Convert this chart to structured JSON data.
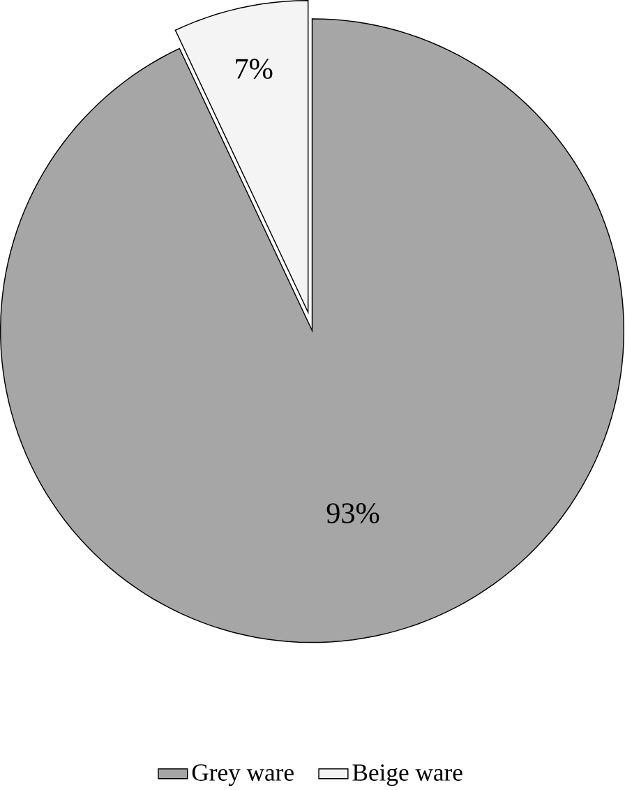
{
  "chart_data": {
    "type": "pie",
    "categories": [
      "Grey ware",
      "Beige ware"
    ],
    "values": [
      93,
      7
    ],
    "colors": [
      "#a6a6a6",
      "#f4f4f4"
    ],
    "value_labels": [
      "93%",
      "7%"
    ],
    "legend": "bottom"
  }
}
